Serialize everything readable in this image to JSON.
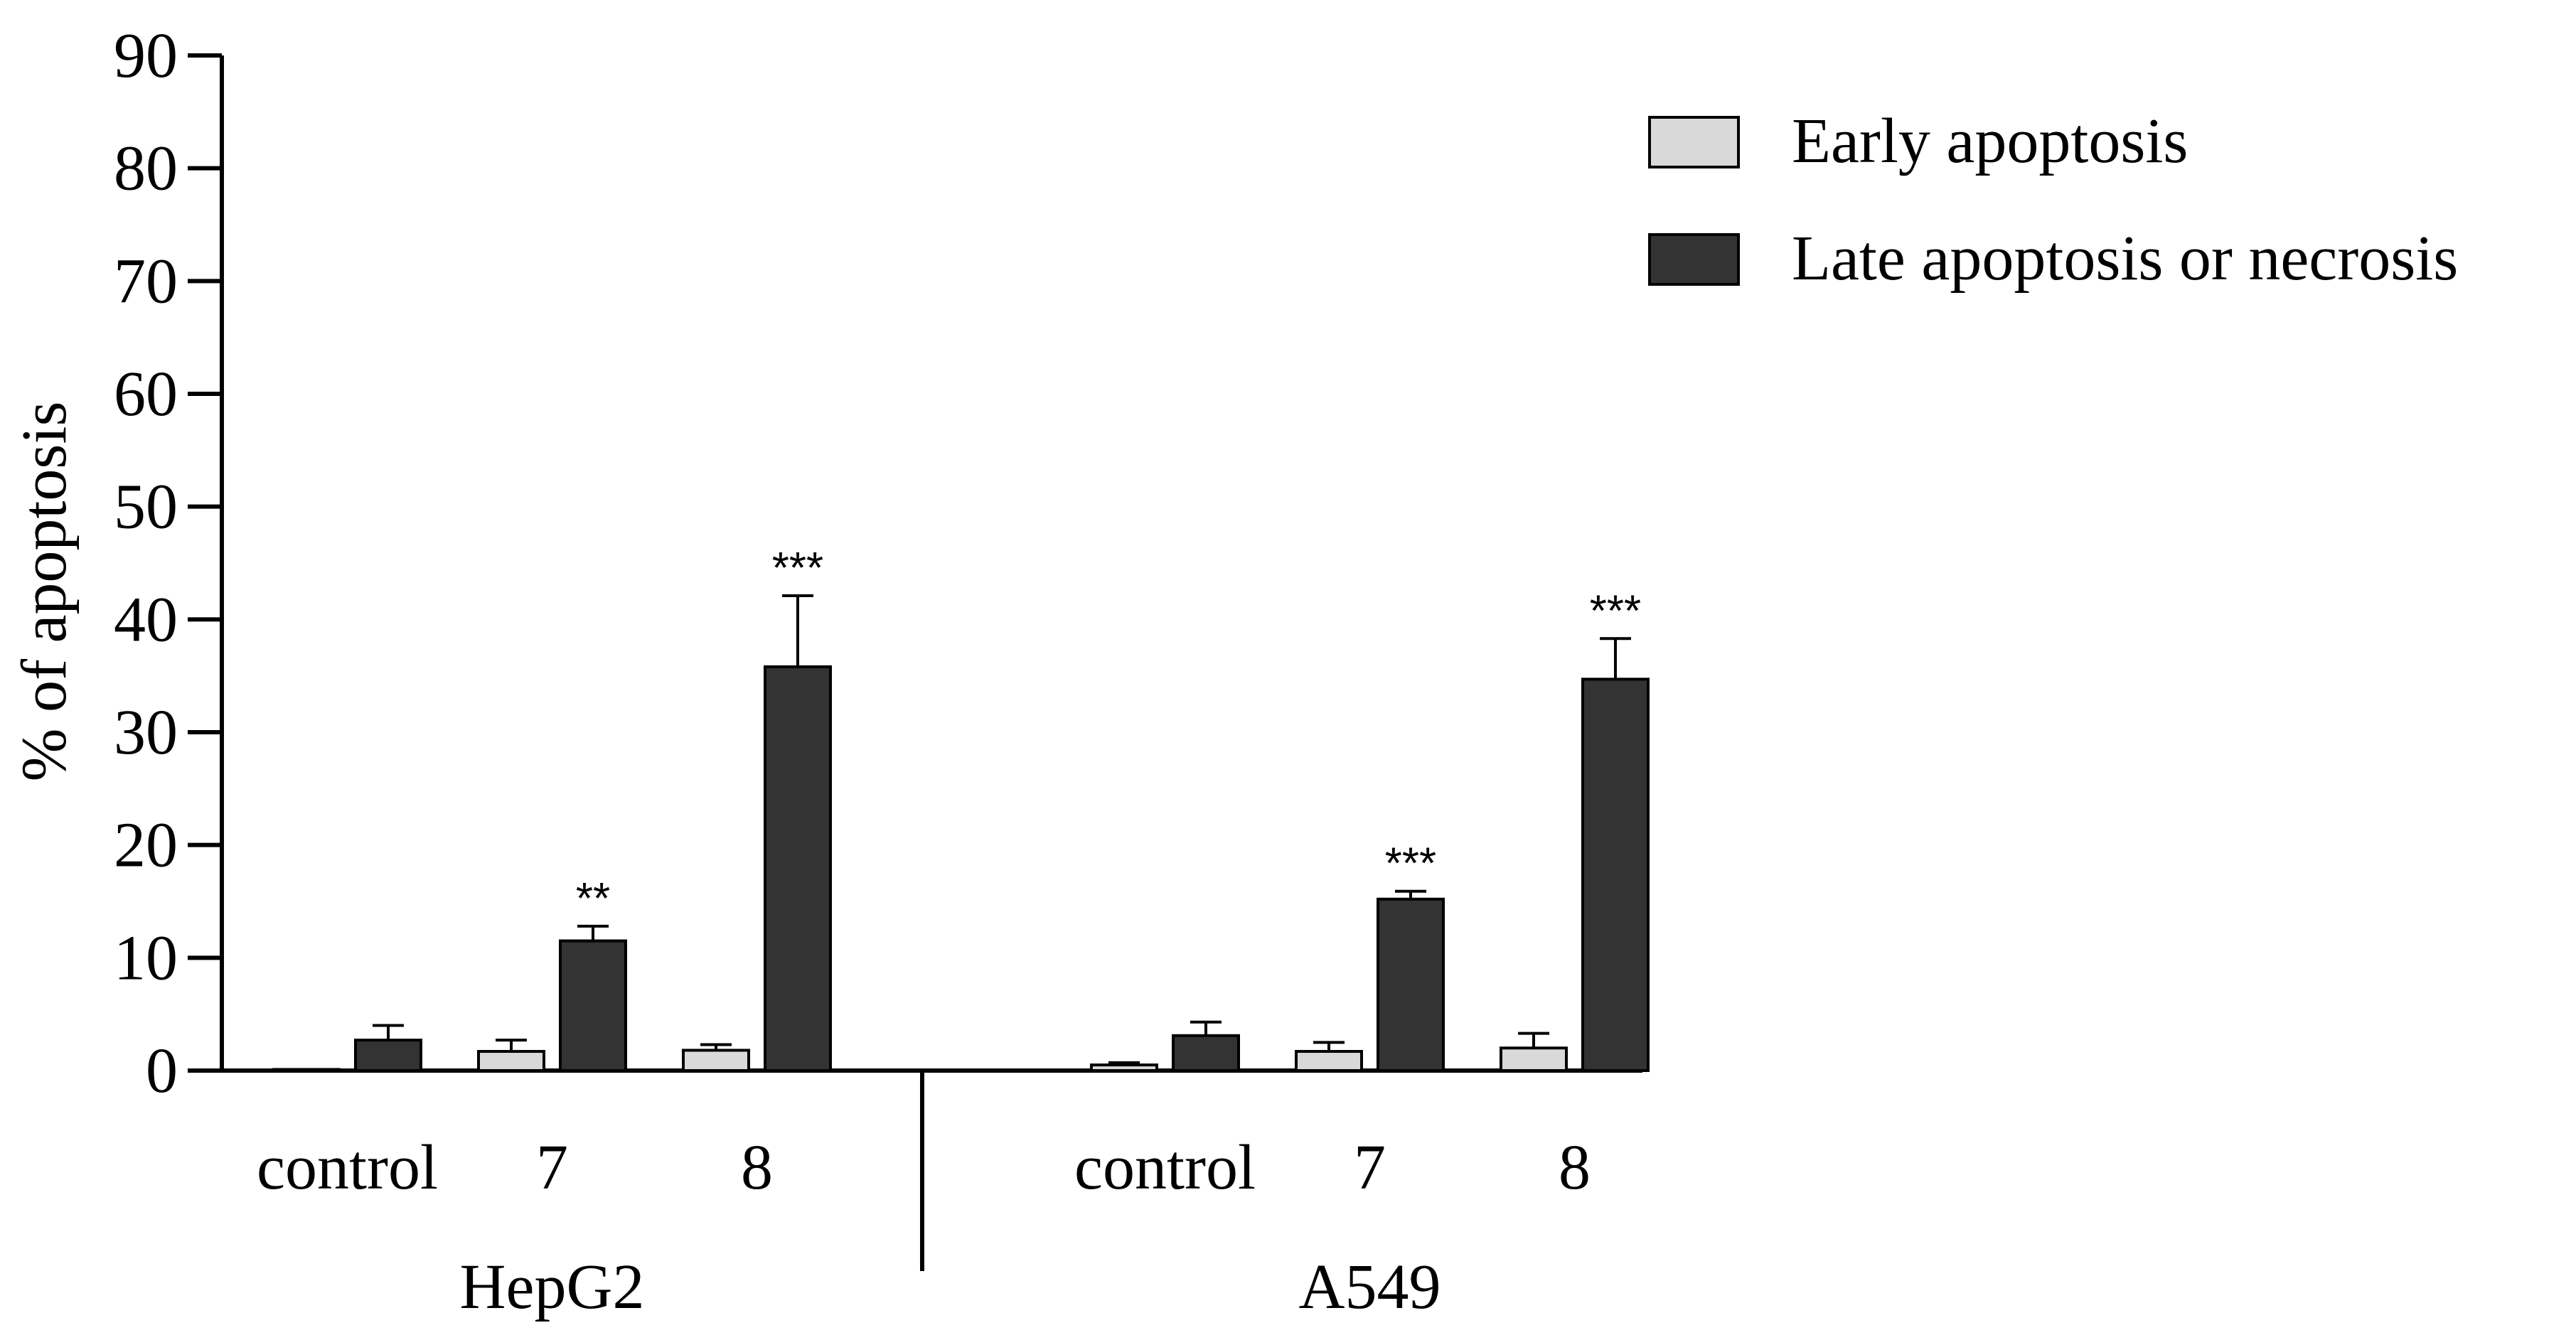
{
  "chart_data": {
    "type": "bar",
    "title": "",
    "xlabel": "",
    "ylabel": "% of apoptosis",
    "ylim": [
      0,
      90
    ],
    "yticks": [
      0,
      10,
      20,
      30,
      40,
      50,
      60,
      70,
      80,
      90
    ],
    "grid": false,
    "legend_position": "top-right",
    "groups": [
      {
        "name": "HepG2",
        "categories": [
          "control",
          "7",
          "8"
        ],
        "early": [
          0.1,
          1.7,
          1.8
        ],
        "early_err": [
          0.0,
          1.0,
          0.5
        ],
        "late": [
          2.7,
          11.5,
          35.8
        ],
        "late_err": [
          1.3,
          1.3,
          6.3
        ],
        "significance": [
          "",
          "**",
          "***"
        ]
      },
      {
        "name": "A549",
        "categories": [
          "control",
          "7",
          "8"
        ],
        "early": [
          0.5,
          1.7,
          2.0
        ],
        "early_err": [
          0.2,
          0.8,
          1.3
        ],
        "late": [
          3.1,
          15.2,
          34.7
        ],
        "late_err": [
          1.2,
          0.7,
          3.6
        ],
        "significance": [
          "",
          "***",
          "***"
        ]
      }
    ],
    "series": [
      {
        "name": "Early apoptosis",
        "color": "#d9d9d9"
      },
      {
        "name": "Late apoptosis or necrosis",
        "color": "#333333"
      }
    ]
  }
}
